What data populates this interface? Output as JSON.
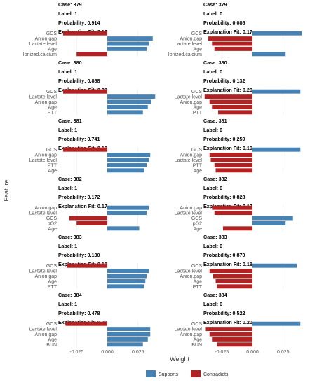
{
  "chart_data": {
    "type": "bar",
    "orientation": "horizontal",
    "xlabel": "Weight",
    "ylabel": "Feature",
    "xlim": [
      -0.04,
      0.04
    ],
    "xticks": [
      -0.025,
      {
        "value": 0,
        "label": "0.000"
      },
      0.025
    ],
    "grid": true,
    "legend": [
      {
        "name": "Supports",
        "color": "#4682b4"
      },
      {
        "name": "Contradicts",
        "color": "#b22222"
      }
    ],
    "legend_position": "bottom",
    "facets": [
      {
        "case": "Case: 379",
        "label": "Label: 1",
        "probability": "Probability: 0.914",
        "fit": "Explanation Fit: 0.17",
        "categories": [
          "GCS",
          "Anion.gap",
          "Lactate.level",
          "Age",
          "Ionized.calcium"
        ],
        "values": [
          -0.036,
          0.037,
          0.034,
          0.032,
          -0.025
        ]
      },
      {
        "case": "Case: 379",
        "label": "Label: 0",
        "probability": "Probability: 0.086",
        "fit": "Explanation Fit: 0.17",
        "categories": [
          "GCS",
          "Anion.gap",
          "Lactate.level",
          "Age",
          "Ionized.calcium"
        ],
        "values": [
          0.04,
          -0.036,
          -0.033,
          -0.031,
          0.027
        ]
      },
      {
        "case": "Case: 380",
        "label": "Label: 1",
        "probability": "Probability: 0.868",
        "fit": "Explanation Fit: 0.20",
        "categories": [
          "GCS",
          "Lactate.level",
          "Anion.gap",
          "Age",
          "PTT"
        ],
        "values": [
          -0.036,
          0.039,
          0.036,
          0.033,
          0.029
        ]
      },
      {
        "case": "Case: 380",
        "label": "Label: 0",
        "probability": "Probability: 0.132",
        "fit": "Explanation Fit: 0.20",
        "categories": [
          "GCS",
          "Lactate.level",
          "Anion.gap",
          "Age",
          "PTT"
        ],
        "values": [
          0.039,
          -0.039,
          -0.035,
          -0.033,
          -0.028
        ]
      },
      {
        "case": "Case: 381",
        "label": "Label: 1",
        "probability": "Probability: 0.741",
        "fit": "Explanation Fit: 0.19",
        "categories": [
          "GCS",
          "Anion.gap",
          "Lactate.level",
          "PTT",
          "Age"
        ],
        "values": [
          -0.036,
          0.035,
          0.034,
          0.032,
          0.03
        ]
      },
      {
        "case": "Case: 381",
        "label": "Label: 0",
        "probability": "Probability: 0.259",
        "fit": "Explanation Fit: 0.19",
        "categories": [
          "GCS",
          "Anion.gap",
          "Lactate.level",
          "PTT",
          "Age"
        ],
        "values": [
          0.039,
          -0.035,
          -0.034,
          -0.031,
          -0.03
        ]
      },
      {
        "case": "Case: 382",
        "label": "Label: 1",
        "probability": "Probability: 0.172",
        "fit": "Explanation Fit: 0.17",
        "categories": [
          "Anion.gap",
          "Lactate.level",
          "GCS",
          "pO2",
          "Age"
        ],
        "values": [
          0.034,
          0.032,
          -0.031,
          -0.025,
          0.026
        ]
      },
      {
        "case": "Case: 382",
        "label": "Label: 0",
        "probability": "Probability: 0.828",
        "fit": "Explanation Fit: 0.17",
        "categories": [
          "Anion.gap",
          "Lactate.level",
          "GCS",
          "pO2",
          "Age"
        ],
        "values": [
          -0.033,
          -0.031,
          0.033,
          0.027,
          -0.024
        ]
      },
      {
        "case": "Case: 383",
        "label": "Label: 1",
        "probability": "Probability: 0.130",
        "fit": "Explanation Fit: 0.18",
        "categories": [
          "GCS",
          "Lactate.level",
          "Anion.gap",
          "Age",
          "PTT"
        ],
        "values": [
          -0.033,
          0.034,
          0.032,
          0.031,
          0.03
        ]
      },
      {
        "case": "Case: 383",
        "label": "Label: 0",
        "probability": "Probability: 0.870",
        "fit": "Explanation Fit: 0.18",
        "categories": [
          "GCS",
          "Lactate.level",
          "Anion.gap",
          "Age",
          "PTT"
        ],
        "values": [
          0.036,
          -0.035,
          -0.032,
          -0.03,
          -0.029
        ]
      },
      {
        "case": "Case: 384",
        "label": "Label: 1",
        "probability": "Probability: 0.478",
        "fit": "Explanation Fit: 0.20",
        "categories": [
          "GCS",
          "Lactate.level",
          "Anion.gap",
          "Age",
          "BUN"
        ],
        "values": [
          -0.034,
          0.035,
          0.035,
          0.033,
          0.029
        ]
      },
      {
        "case": "Case: 384",
        "label": "Label: 0",
        "probability": "Probability: 0.522",
        "fit": "Explanation Fit: 0.20",
        "categories": [
          "GCS",
          "Lactate.level",
          "Anion.gap",
          "Age",
          "BUN"
        ],
        "values": [
          0.039,
          -0.038,
          -0.035,
          -0.033,
          -0.029
        ]
      }
    ]
  }
}
